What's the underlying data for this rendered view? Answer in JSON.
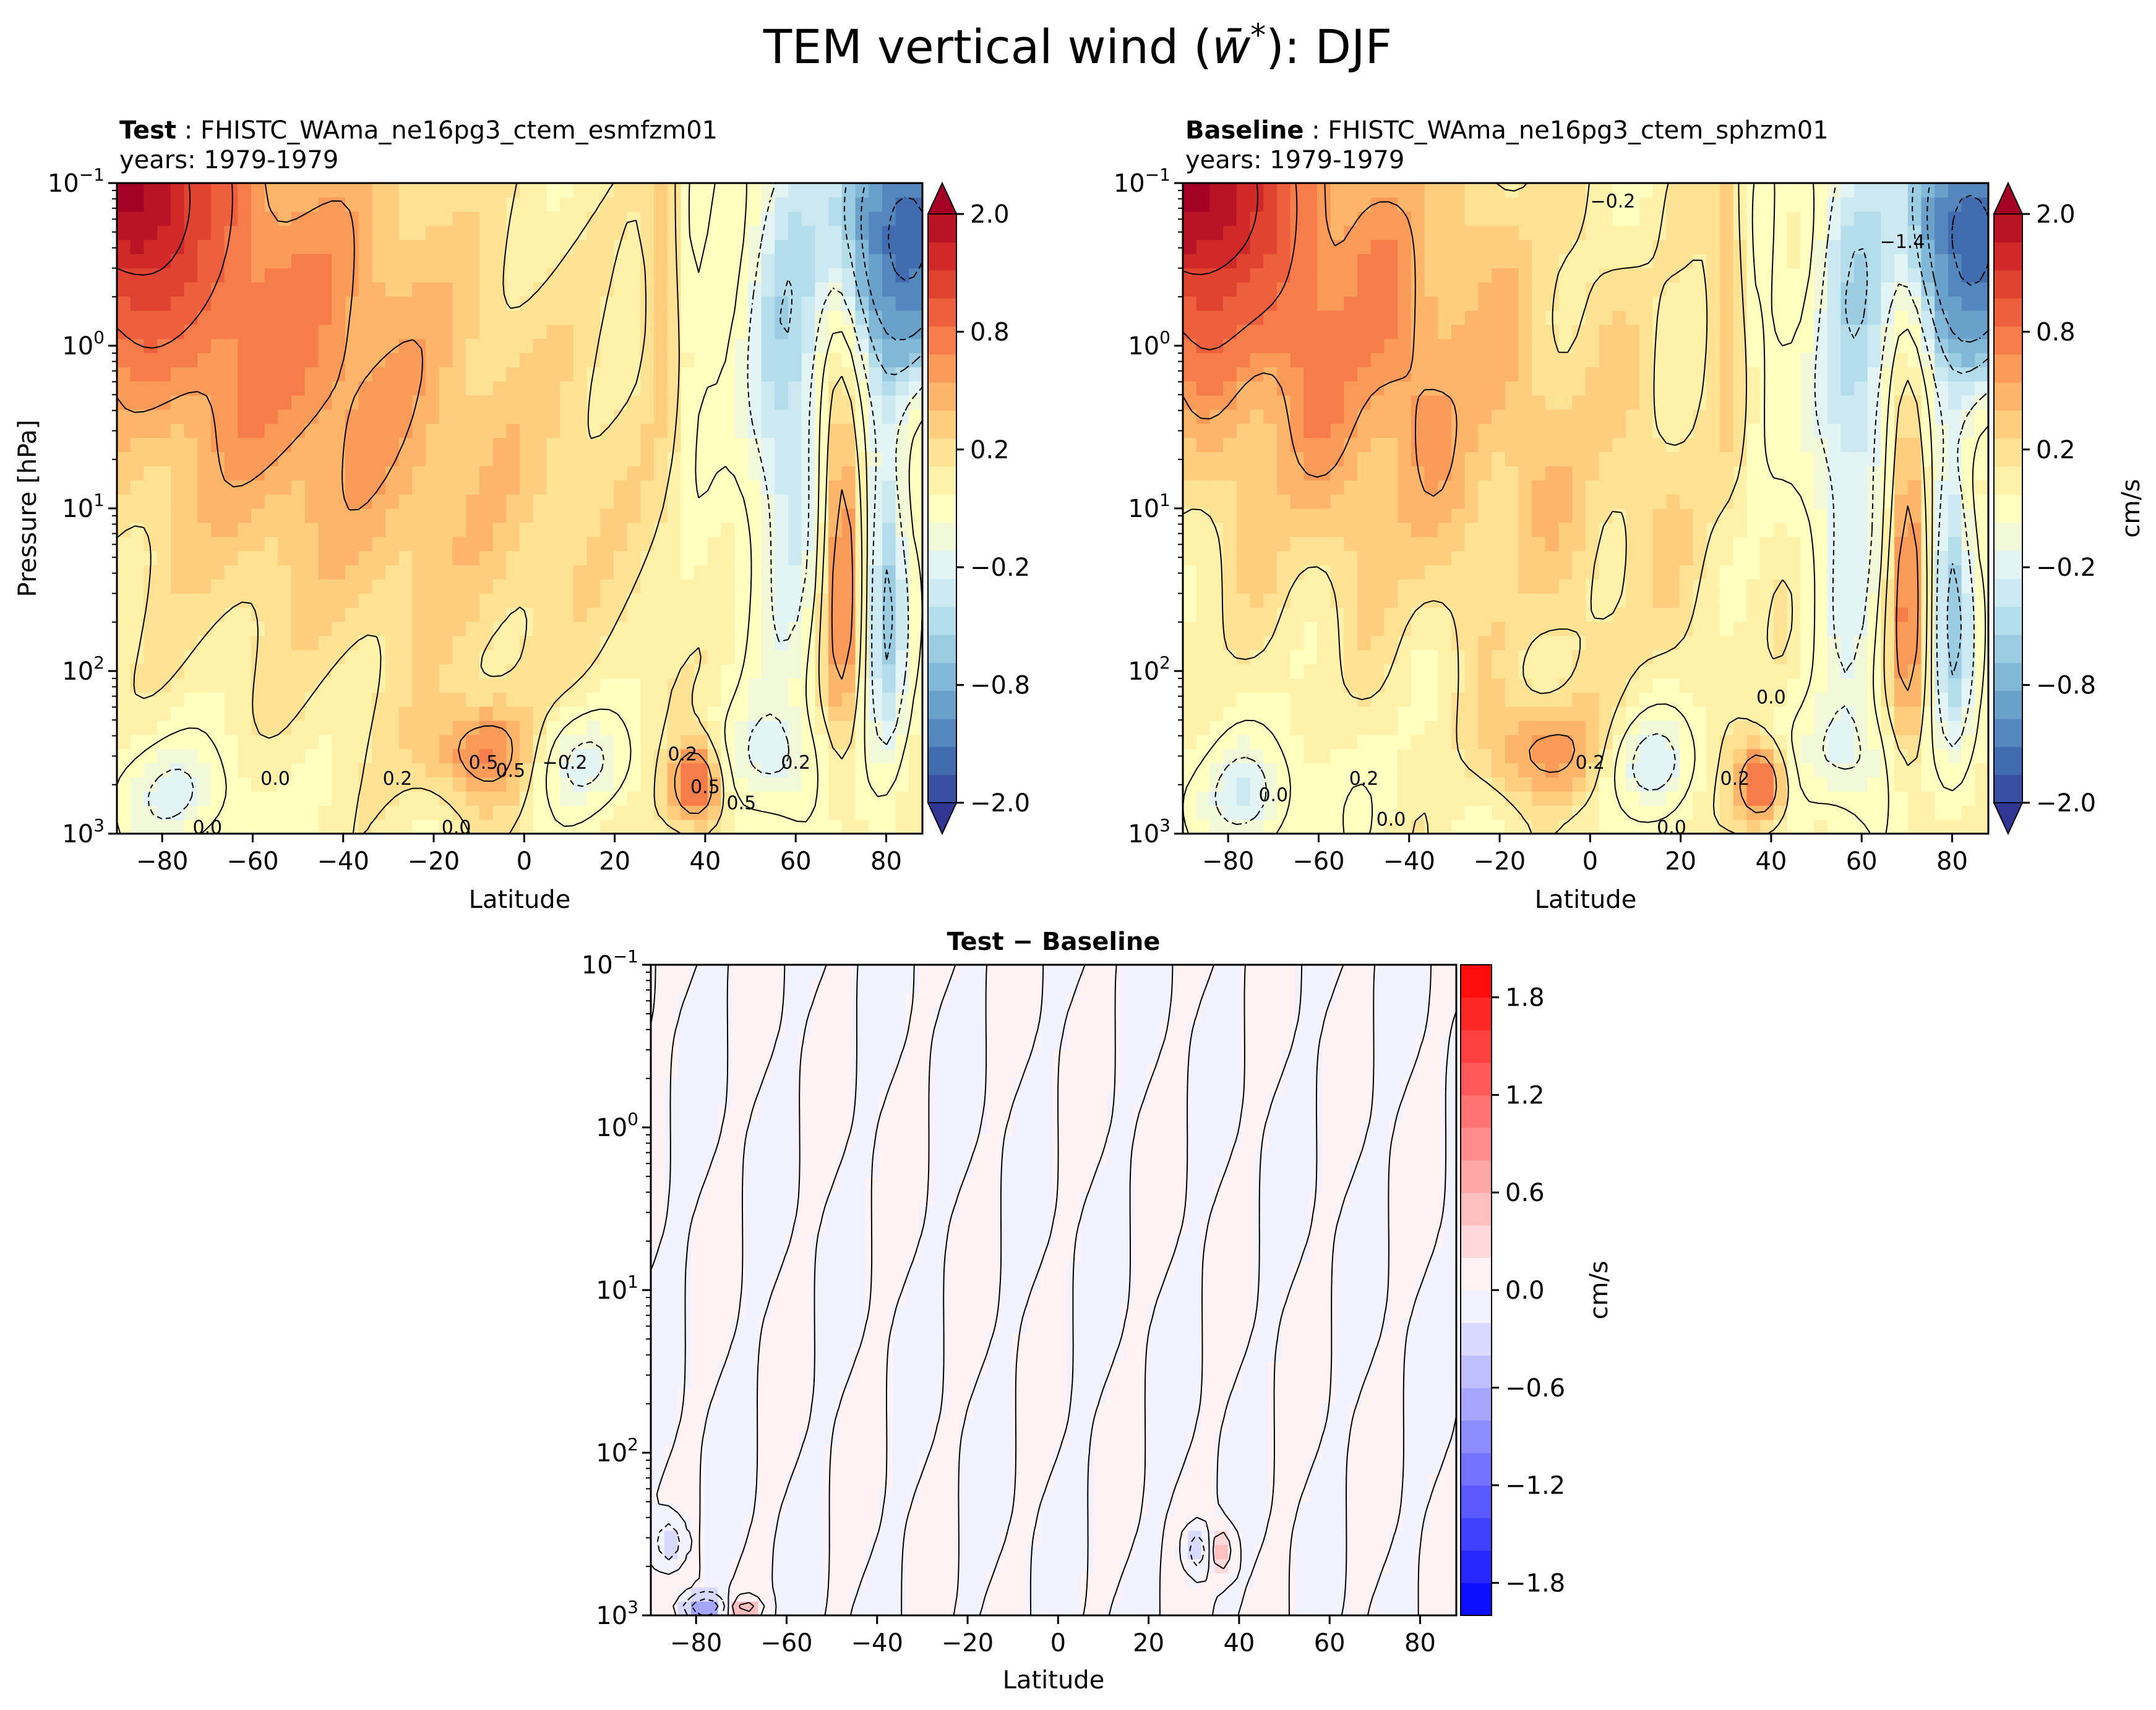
{
  "title_prefix": "TEM vertical wind (",
  "title_symbol": "w̄",
  "title_sup": "*",
  "title_suffix": "): DJF",
  "chart_data": [
    {
      "id": "test",
      "type": "heatmap",
      "title_bold": "Test",
      "title_rest": " : FHISTC_WAma_ne16pg3_ctem_esmfzm01",
      "subtitle": "years: 1979-1979",
      "xlabel": "Latitude",
      "ylabel": "Pressure [hPa]",
      "xlim": [
        -90,
        88
      ],
      "ylim_log": [
        1000,
        0.1
      ],
      "xticks": [
        -80,
        -60,
        -40,
        -20,
        0,
        20,
        40,
        60,
        80
      ],
      "yticks": [
        {
          "base": "10",
          "exp": "−1"
        },
        {
          "base": "10",
          "exp": "0"
        },
        {
          "base": "10",
          "exp": "1"
        },
        {
          "base": "10",
          "exp": "2"
        },
        {
          "base": "10",
          "exp": "3"
        }
      ],
      "colorbar": {
        "cmap": "RdYlBu_r",
        "ticks": [
          "2.0",
          "0.8",
          "0.2",
          "−0.2",
          "−0.8",
          "−2.0"
        ],
        "label": "",
        "extend": "both"
      },
      "contour_labels": [
        "0.5",
        "0.5",
        "−0.2",
        "0.2",
        "0.0",
        "0.0",
        "0.2",
        "0.5",
        "0.2",
        "0.0",
        "0.5"
      ]
    },
    {
      "id": "baseline",
      "type": "heatmap",
      "title_bold": "Baseline",
      "title_rest": " : FHISTC_WAma_ne16pg3_ctem_sphzm01",
      "subtitle": "years: 1979-1979",
      "xlabel": "Latitude",
      "ylabel": "",
      "xlim": [
        -90,
        88
      ],
      "ylim_log": [
        1000,
        0.1
      ],
      "xticks": [
        -80,
        -60,
        -40,
        -20,
        0,
        20,
        40,
        60,
        80
      ],
      "yticks": [
        {
          "base": "10",
          "exp": "−1"
        },
        {
          "base": "10",
          "exp": "0"
        },
        {
          "base": "10",
          "exp": "1"
        },
        {
          "base": "10",
          "exp": "2"
        },
        {
          "base": "10",
          "exp": "3"
        }
      ],
      "colorbar": {
        "cmap": "RdYlBu_r",
        "ticks": [
          "2.0",
          "0.8",
          "0.2",
          "−0.2",
          "−0.8",
          "−2.0"
        ],
        "label": "cm/s",
        "extend": "both"
      },
      "contour_labels": [
        "−0.2",
        "−1.4",
        "0.2",
        "0.0",
        "0.0",
        "0.2",
        "0.2",
        "0.0",
        "0.0"
      ]
    },
    {
      "id": "diff",
      "type": "heatmap",
      "title": "Test − Baseline",
      "xlabel": "Latitude",
      "ylabel": "",
      "xlim": [
        -90,
        88
      ],
      "ylim_log": [
        1000,
        0.1
      ],
      "xticks": [
        -80,
        -60,
        -40,
        -20,
        0,
        20,
        40,
        60,
        80
      ],
      "yticks": [
        {
          "base": "10",
          "exp": "−1"
        },
        {
          "base": "10",
          "exp": "0"
        },
        {
          "base": "10",
          "exp": "1"
        },
        {
          "base": "10",
          "exp": "2"
        },
        {
          "base": "10",
          "exp": "3"
        }
      ],
      "colorbar": {
        "cmap": "bwr",
        "ticks": [
          "1.8",
          "1.2",
          "0.6",
          "0.0",
          "−0.6",
          "−1.2",
          "−1.8"
        ],
        "label": "cm/s",
        "extend": "neither"
      }
    }
  ]
}
